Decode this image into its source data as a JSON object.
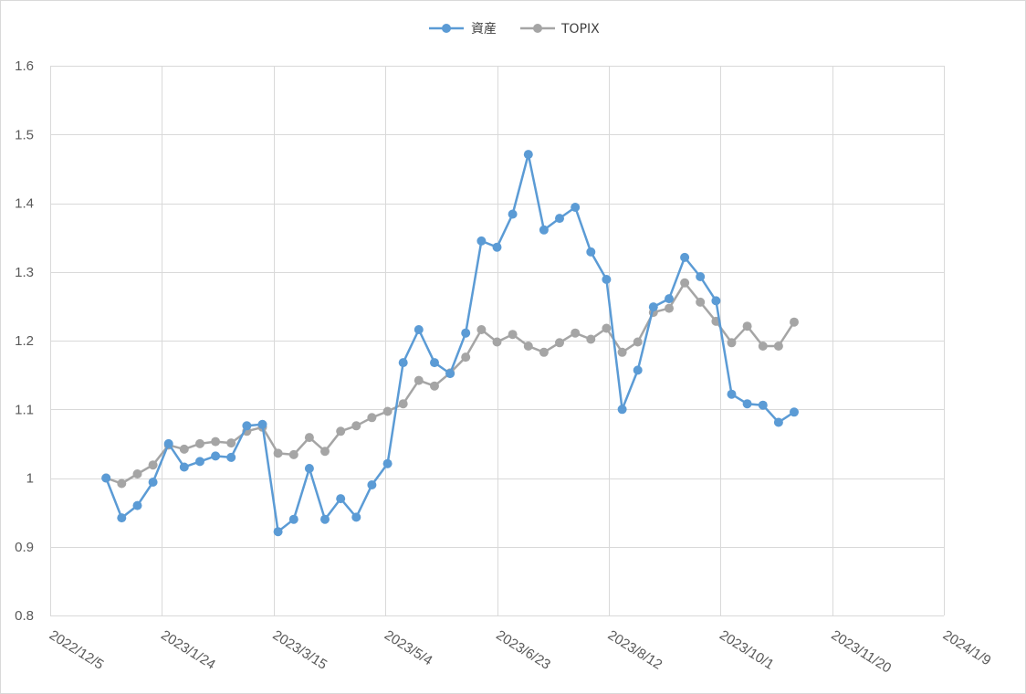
{
  "chart_data": {
    "type": "line",
    "title": "",
    "xlabel": "",
    "ylabel": "",
    "ylim": [
      0.8,
      1.6
    ],
    "y_ticks": [
      "0.8",
      "0.9",
      "1",
      "1.1",
      "1.2",
      "1.3",
      "1.4",
      "1.5",
      "1.6"
    ],
    "x_ticks": [
      "2022/12/5",
      "2023/1/24",
      "2023/3/15",
      "2023/5/4",
      "2023/6/23",
      "2023/8/12",
      "2023/10/1",
      "2023/11/20",
      "2024/1/9"
    ],
    "x_tick_rotation": "diagonal",
    "grid": true,
    "legend_position": "top-center",
    "x": [
      "2022/12/30",
      "2023/1/6",
      "2023/1/13",
      "2023/1/20",
      "2023/1/27",
      "2023/2/3",
      "2023/2/10",
      "2023/2/17",
      "2023/2/24",
      "2023/3/3",
      "2023/3/10",
      "2023/3/17",
      "2023/3/24",
      "2023/3/31",
      "2023/4/7",
      "2023/4/14",
      "2023/4/21",
      "2023/4/28",
      "2023/5/5",
      "2023/5/12",
      "2023/5/19",
      "2023/5/26",
      "2023/6/2",
      "2023/6/9",
      "2023/6/16",
      "2023/6/23",
      "2023/6/30",
      "2023/7/7",
      "2023/7/14",
      "2023/7/21",
      "2023/7/28",
      "2023/8/4",
      "2023/8/11",
      "2023/8/18",
      "2023/8/25",
      "2023/9/1",
      "2023/9/8",
      "2023/9/15",
      "2023/9/22",
      "2023/9/29",
      "2023/10/6",
      "2023/10/13",
      "2023/10/20",
      "2023/10/27",
      "2023/11/3"
    ],
    "series": [
      {
        "name": "資産",
        "color": "#5b9bd5",
        "values": [
          1.0,
          0.942,
          0.96,
          0.994,
          1.05,
          1.016,
          1.024,
          1.032,
          1.03,
          1.076,
          1.078,
          0.922,
          0.94,
          1.014,
          0.94,
          0.97,
          0.943,
          0.99,
          1.021,
          1.168,
          1.216,
          1.168,
          1.152,
          1.211,
          1.345,
          1.336,
          1.384,
          1.471,
          1.361,
          1.378,
          1.394,
          1.329,
          1.289,
          1.1,
          1.157,
          1.249,
          1.261,
          1.321,
          1.293,
          1.258,
          1.122,
          1.108,
          1.106,
          1.081,
          1.096
        ]
      },
      {
        "name": "TOPIX",
        "color": "#a5a5a5",
        "values": [
          1.0,
          0.992,
          1.006,
          1.019,
          1.048,
          1.042,
          1.05,
          1.053,
          1.051,
          1.068,
          1.074,
          1.036,
          1.034,
          1.059,
          1.039,
          1.068,
          1.076,
          1.088,
          1.097,
          1.108,
          1.142,
          1.134,
          1.153,
          1.176,
          1.216,
          1.198,
          1.209,
          1.192,
          1.183,
          1.197,
          1.211,
          1.202,
          1.218,
          1.183,
          1.198,
          1.241,
          1.247,
          1.284,
          1.256,
          1.228,
          1.197,
          1.221,
          1.192,
          1.192,
          1.227
        ]
      }
    ]
  },
  "styles": {
    "gridline_color": "#d9d9d9",
    "axis_label_color": "#595959",
    "legend_text_color": "#404040",
    "frame_border_color": "#d9d9d9"
  }
}
